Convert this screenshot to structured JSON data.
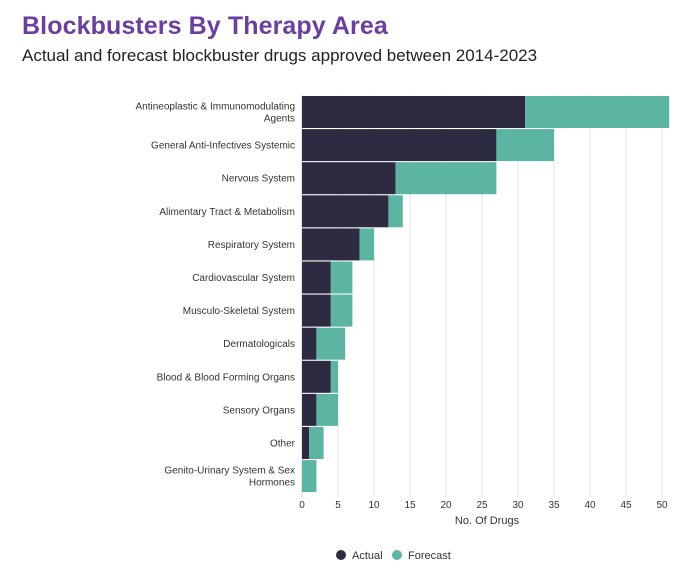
{
  "title": "Blockbusters By Therapy Area",
  "subtitle": "Actual and forecast blockbuster drugs approved between 2014-2023",
  "colors": {
    "title": "#6a3fa0",
    "actual": "#2d2b42",
    "forecast": "#5bb5a2",
    "grid": "#e3e3e3"
  },
  "chart_data": {
    "type": "bar",
    "orientation": "horizontal",
    "stacked": true,
    "categories": [
      [
        "Antineoplastic & Immunomodulating",
        "Agents"
      ],
      [
        "General Anti-Infectives Systemic"
      ],
      [
        "Nervous System"
      ],
      [
        "Alimentary Tract & Metabolism"
      ],
      [
        "Respiratory System"
      ],
      [
        "Cardiovascular System"
      ],
      [
        "Musculo-Skeletal System"
      ],
      [
        "Dermatologicals"
      ],
      [
        "Blood & Blood Forming Organs"
      ],
      [
        "Sensory Organs"
      ],
      [
        "Other"
      ],
      [
        "Genito-Urinary System & Sex",
        "Hormones"
      ]
    ],
    "series": [
      {
        "name": "Actual",
        "values": [
          31,
          27,
          13,
          12,
          8,
          4,
          4,
          2,
          4,
          2,
          1,
          0
        ]
      },
      {
        "name": "Forecast",
        "values": [
          20,
          8,
          14,
          2,
          2,
          3,
          3,
          4,
          1,
          3,
          2,
          2
        ]
      }
    ],
    "xlabel": "No. Of Drugs",
    "ylabel": "",
    "xlim": [
      0,
      51
    ],
    "xticks": [
      0,
      5,
      10,
      15,
      20,
      25,
      30,
      35,
      40,
      45,
      50
    ],
    "grid": true,
    "legend": "bottom-center"
  }
}
